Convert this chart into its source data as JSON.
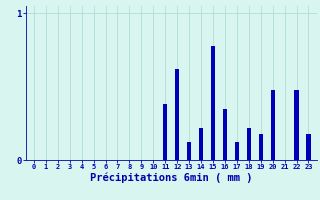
{
  "hours": [
    0,
    1,
    2,
    3,
    4,
    5,
    6,
    7,
    8,
    9,
    10,
    11,
    12,
    13,
    14,
    15,
    16,
    17,
    18,
    19,
    20,
    21,
    22,
    23
  ],
  "values": [
    0,
    0,
    0,
    0,
    0,
    0,
    0,
    0,
    0,
    0,
    0,
    0.38,
    0.62,
    0.12,
    0.22,
    0.78,
    0.35,
    0.12,
    0.22,
    0.18,
    0.48,
    0,
    0.48,
    0.18
  ],
  "bar_color": "#0000bb",
  "bg_color": "#d8f5f0",
  "grid_color": "#b0ddd4",
  "axis_color": "#0000aa",
  "xlabel": "Précipitations 6min ( mm )",
  "xlabel_fontsize": 7.5,
  "ylim": [
    0,
    1.05
  ],
  "yticks": [
    0,
    1
  ],
  "bar_width": 0.35
}
